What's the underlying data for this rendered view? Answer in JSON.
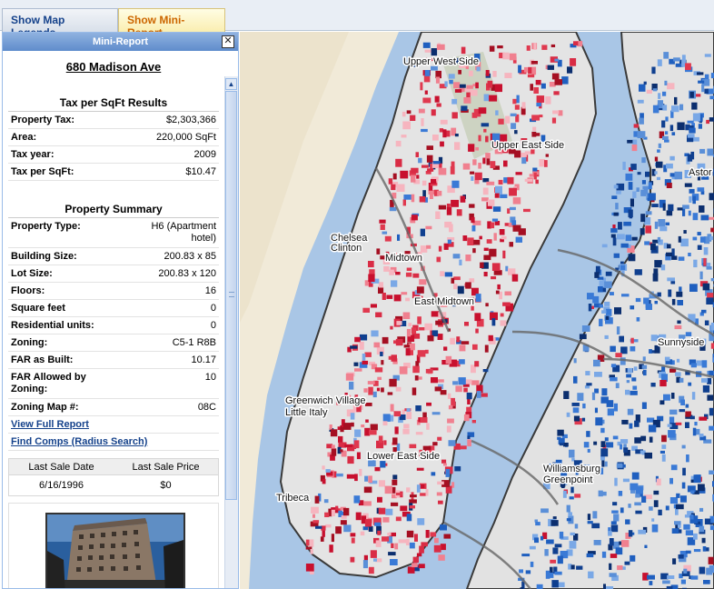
{
  "tabs": [
    {
      "label": "Show Map Legends"
    },
    {
      "label": "Show Mini-Report"
    }
  ],
  "panel": {
    "title": "Mini-Report",
    "address": "680 Madison Ave",
    "tax_section": {
      "title": "Tax per SqFt Results",
      "rows": [
        {
          "label": "Property Tax:",
          "value": "$2,303,366"
        },
        {
          "label": "Area:",
          "value": "220,000 SqFt"
        },
        {
          "label": "Tax year:",
          "value": "2009"
        },
        {
          "label": "Tax per SqFt:",
          "value": "$10.47"
        }
      ]
    },
    "summary_section": {
      "title": "Property Summary",
      "rows": [
        {
          "label": "Property Type:",
          "value": "H6 (Apartment hotel)"
        },
        {
          "label": "Building Size:",
          "value": "200.83 x 85"
        },
        {
          "label": "Lot Size:",
          "value": "200.83 x 120"
        },
        {
          "label": "Floors:",
          "value": "16"
        },
        {
          "label": "Square feet",
          "value": "0"
        },
        {
          "label": "Residential units:",
          "value": "0"
        },
        {
          "label": "Zoning:",
          "value": "C5-1 R8B"
        },
        {
          "label": "FAR as Built:",
          "value": "10.17"
        },
        {
          "label": "FAR Allowed by Zoning:",
          "value": "10"
        },
        {
          "label": "Zoning Map #:",
          "value": "08C"
        }
      ]
    },
    "links": {
      "full_report": "View Full Report",
      "comps": "Find Comps (Radius Search)"
    },
    "sales": {
      "headers": [
        "Last Sale Date",
        "Last Sale Price"
      ],
      "values": [
        "6/16/1996",
        "$0"
      ]
    }
  },
  "map": {
    "labels": [
      {
        "text": "Upper West Side"
      },
      {
        "text": "Upper East Side"
      },
      {
        "text": "Astor"
      },
      {
        "text": "Chelsea"
      },
      {
        "text": "Clinton"
      },
      {
        "text": "Midtown"
      },
      {
        "text": "East Midtown"
      },
      {
        "text": "Sunnyside"
      },
      {
        "text": "Greenwich Village"
      },
      {
        "text": "Little Italy"
      },
      {
        "text": "Lower East Side"
      },
      {
        "text": "Williamsburg"
      },
      {
        "text": "Greenpoint"
      },
      {
        "text": "Tribeca"
      }
    ],
    "colors": {
      "water": "#a9c6e6",
      "high_tax": "#c8102e",
      "low_tax": "#1f5fbf",
      "land": "#dedede"
    }
  }
}
